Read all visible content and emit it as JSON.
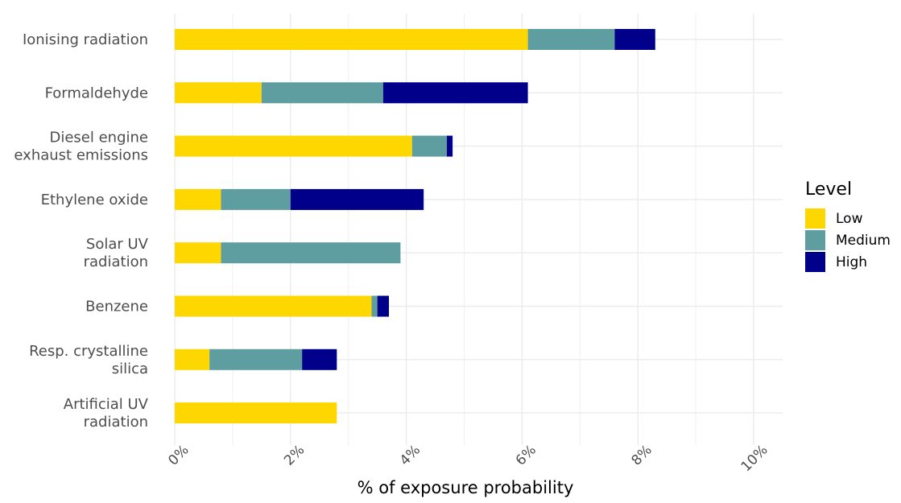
{
  "chart_data": {
    "type": "bar",
    "orientation": "horizontal",
    "stacked": true,
    "categories": [
      [
        "Ionising radiation"
      ],
      [
        "Formaldehyde"
      ],
      [
        "Diesel engine",
        "exhaust emissions"
      ],
      [
        "Ethylene oxide"
      ],
      [
        "Solar UV",
        "radiation"
      ],
      [
        "Benzene"
      ],
      [
        "Resp. crystalline",
        "silica"
      ],
      [
        "Artificial UV",
        "radiation"
      ]
    ],
    "series": [
      {
        "name": "Low",
        "color": "#FFD700",
        "values": [
          6.1,
          1.5,
          4.1,
          0.8,
          0.8,
          3.4,
          0.6,
          2.8
        ]
      },
      {
        "name": "Medium",
        "color": "#5F9EA0",
        "values": [
          1.5,
          2.1,
          0.6,
          1.2,
          3.1,
          0.1,
          1.6,
          0.0
        ]
      },
      {
        "name": "High",
        "color": "#00008B",
        "values": [
          0.7,
          2.5,
          0.1,
          2.3,
          0.0,
          0.2,
          0.6,
          0.0
        ]
      }
    ],
    "xlim": [
      0,
      10
    ],
    "xticks": [
      "0%",
      "2%",
      "4%",
      "6%",
      "8%",
      "10%"
    ],
    "xlabel": "% of exposure probability",
    "ylabel": "",
    "title": "",
    "grid": true,
    "legend": {
      "title": "Level",
      "position": "right"
    }
  }
}
